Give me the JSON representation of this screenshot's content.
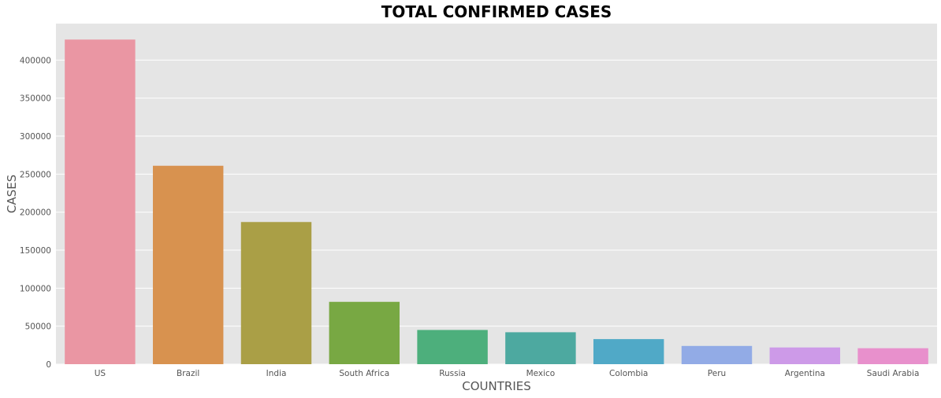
{
  "chart_data": {
    "type": "bar",
    "title": "TOTAL CONFIRMED CASES",
    "xlabel": "COUNTRIES",
    "ylabel": "CASES",
    "categories": [
      "US",
      "Brazil",
      "India",
      "South Africa",
      "Russia",
      "Mexico",
      "Colombia",
      "Peru",
      "Argentina",
      "Saudi Arabia"
    ],
    "values": [
      427000,
      261000,
      187000,
      82000,
      45000,
      42000,
      33000,
      24000,
      22000,
      21000
    ],
    "ylim": [
      0,
      448000
    ],
    "yticks": [
      0,
      50000,
      100000,
      150000,
      200000,
      250000,
      300000,
      350000,
      400000
    ],
    "ytick_labels": [
      "0",
      "50000",
      "100000",
      "150000",
      "200000",
      "250000",
      "300000",
      "350000",
      "400000"
    ],
    "grid": true,
    "colors": [
      "#ea96a3",
      "#d8924f",
      "#aa9f46",
      "#78a843",
      "#4daf7c",
      "#4da9a0",
      "#50a9c7",
      "#92abe6",
      "#cd9ae8",
      "#e890cc"
    ],
    "background": "#e5e5e5",
    "grid_color": "#ffffff"
  }
}
